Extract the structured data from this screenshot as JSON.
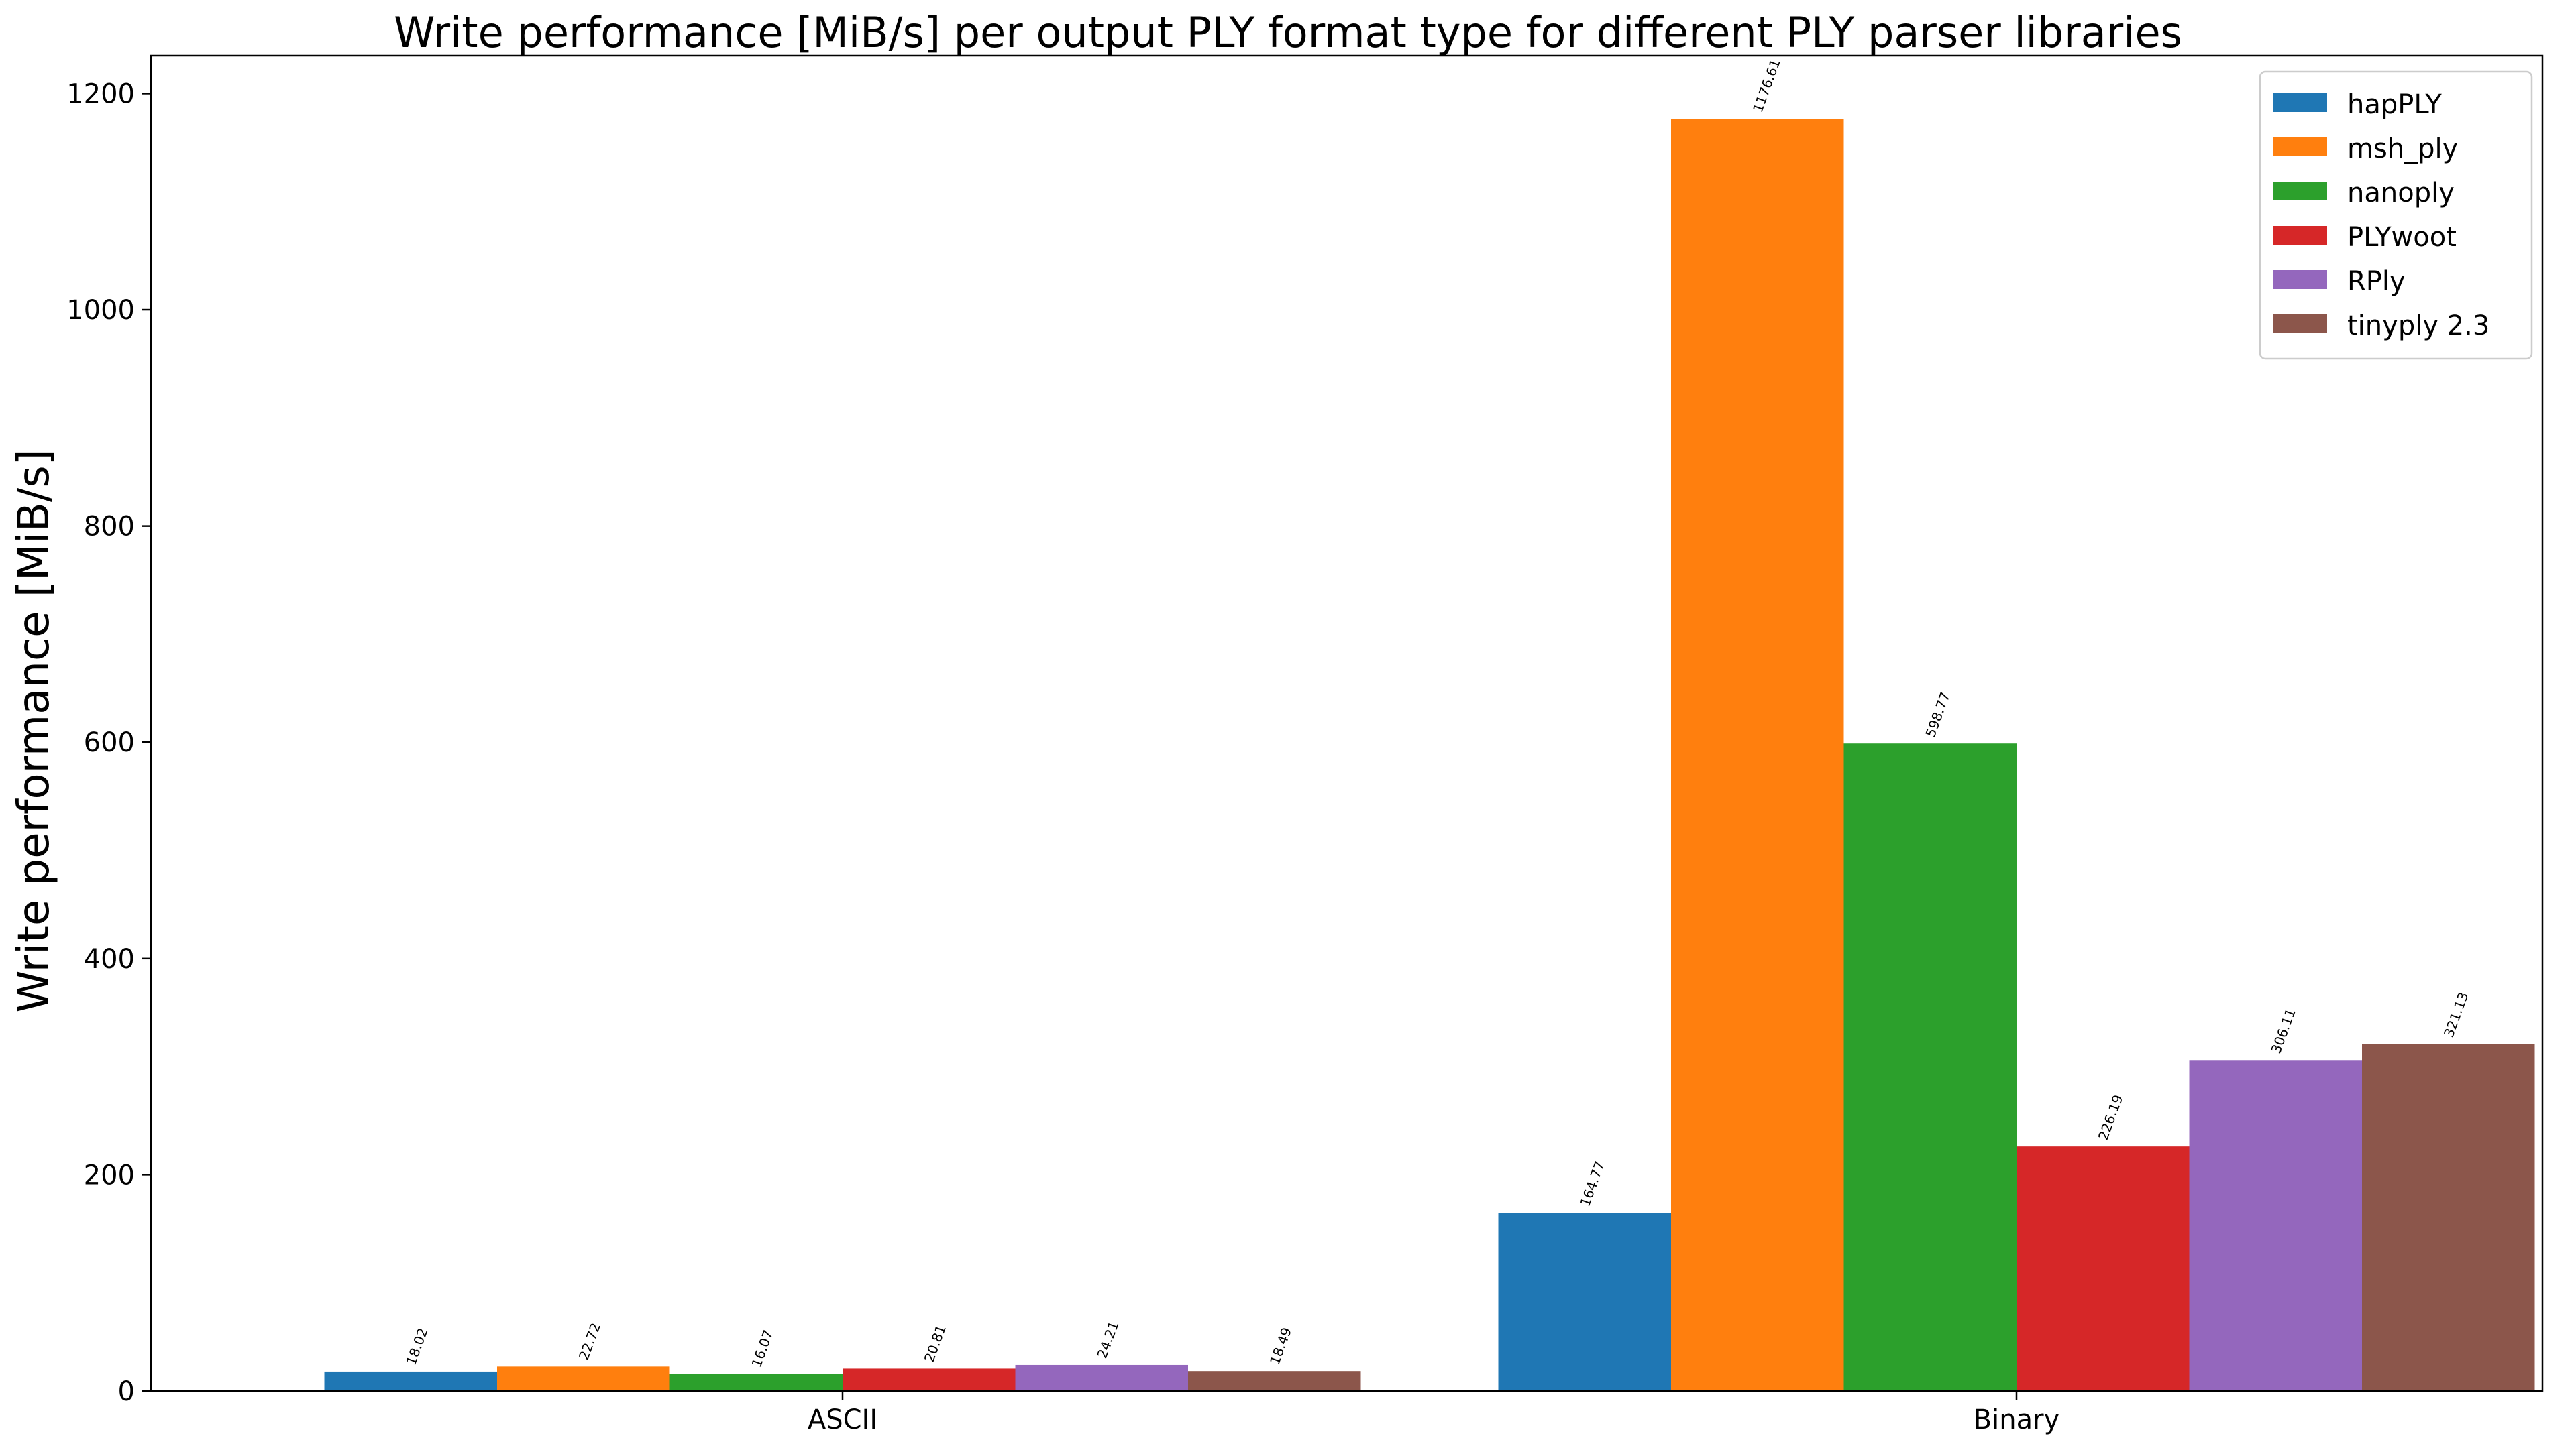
{
  "chart_data": {
    "type": "bar",
    "title": "Write performance [MiB/s] per output PLY format type for different PLY parser libraries",
    "xlabel": "",
    "ylabel": "Write performance [MiB/s]",
    "categories": [
      "ASCII",
      "Binary"
    ],
    "ylim": [
      0,
      1235
    ],
    "yticks": [
      0,
      200,
      400,
      600,
      800,
      1000,
      1200
    ],
    "grid": false,
    "legend_position": "top-right",
    "series": [
      {
        "name": "hapPLY",
        "color": "#1f77b4",
        "values": [
          18.02,
          164.77
        ],
        "labels": [
          "18.02",
          "164.77"
        ]
      },
      {
        "name": "msh_ply",
        "color": "#ff7f0e",
        "values": [
          22.72,
          1176.61
        ],
        "labels": [
          "22.72",
          "1176.61"
        ]
      },
      {
        "name": "nanoply",
        "color": "#2ca02c",
        "values": [
          16.07,
          598.77
        ],
        "labels": [
          "16.07",
          "598.77"
        ]
      },
      {
        "name": "PLYwoot",
        "color": "#d62728",
        "values": [
          20.81,
          226.19
        ],
        "labels": [
          "20.81",
          "226.19"
        ]
      },
      {
        "name": "RPly",
        "color": "#9467bd",
        "values": [
          24.21,
          306.11
        ],
        "labels": [
          "24.21",
          "306.11"
        ]
      },
      {
        "name": "tinyply 2.3",
        "color": "#8c564b",
        "values": [
          18.49,
          321.13
        ],
        "labels": [
          "18.49",
          "321.13"
        ]
      }
    ]
  }
}
